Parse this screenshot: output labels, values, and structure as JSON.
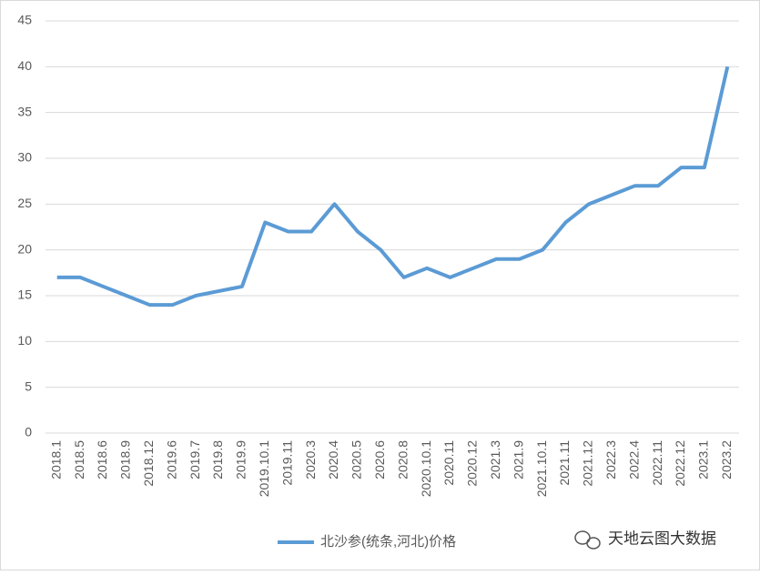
{
  "chart_data": {
    "type": "line",
    "categories": [
      "2018.1",
      "2018.5",
      "2018.6",
      "2018.9",
      "2018.12",
      "2019.6",
      "2019.7",
      "2019.8",
      "2019.9",
      "2019.10.1",
      "2019.11",
      "2020.3",
      "2020.4",
      "2020.5",
      "2020.6",
      "2020.8",
      "2020.10.1",
      "2020.11",
      "2020.12",
      "2021.3",
      "2021.9",
      "2021.10.1",
      "2021.11",
      "2021.12",
      "2022.3",
      "2022.4",
      "2022.11",
      "2022.12",
      "2023.1",
      "2023.2"
    ],
    "series": [
      {
        "name": "北沙参(统条,河北)价格",
        "color": "#5b9bd5",
        "values": [
          17,
          17,
          16,
          15,
          14,
          14,
          15,
          15.5,
          16,
          23,
          22,
          22,
          25,
          22,
          20,
          17,
          18,
          17,
          18,
          19,
          19,
          20,
          23,
          25,
          26,
          27,
          27,
          29,
          29,
          40
        ]
      }
    ],
    "ylim": [
      0,
      45
    ],
    "yticks": [
      0,
      5,
      10,
      15,
      20,
      25,
      30,
      35,
      40,
      45
    ],
    "grid": true,
    "legend": "bottom",
    "watermark": "天地云图大数据"
  }
}
